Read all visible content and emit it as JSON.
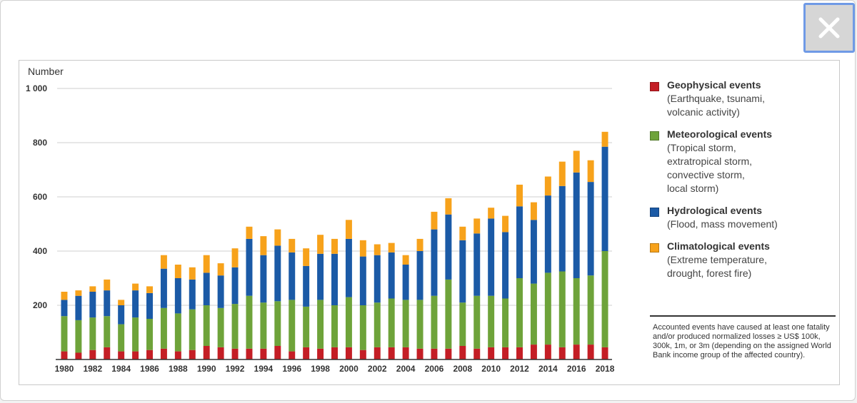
{
  "dialog": {
    "close_label": "Close"
  },
  "chart_data": {
    "type": "bar",
    "stacked": true,
    "ylabel": "Number",
    "ylim": [
      0,
      1000
    ],
    "yticks": [
      200,
      400,
      600,
      800,
      1000
    ],
    "ytick_labels": [
      "200",
      "400",
      "600",
      "800",
      "1 000"
    ],
    "categories": [
      "1980",
      "1981",
      "1982",
      "1983",
      "1984",
      "1985",
      "1986",
      "1987",
      "1988",
      "1989",
      "1990",
      "1991",
      "1992",
      "1993",
      "1994",
      "1995",
      "1996",
      "1997",
      "1998",
      "1999",
      "2000",
      "2001",
      "2002",
      "2003",
      "2004",
      "2005",
      "2006",
      "2007",
      "2008",
      "2009",
      "2010",
      "2011",
      "2012",
      "2013",
      "2014",
      "2015",
      "2016",
      "2017",
      "2018"
    ],
    "xtick_labels": [
      "1980",
      "",
      "1982",
      "",
      "1984",
      "",
      "1986",
      "",
      "1988",
      "",
      "1990",
      "",
      "1992",
      "",
      "1994",
      "",
      "1996",
      "",
      "1998",
      "",
      "2000",
      "",
      "2002",
      "",
      "2004",
      "",
      "2006",
      "",
      "2008",
      "",
      "2010",
      "",
      "2012",
      "",
      "2014",
      "",
      "2016",
      "",
      "2018"
    ],
    "series": [
      {
        "name": "Geophysical events",
        "color": "#c41e25",
        "values": [
          30,
          25,
          35,
          45,
          30,
          30,
          35,
          40,
          30,
          35,
          50,
          45,
          40,
          40,
          40,
          50,
          30,
          45,
          40,
          45,
          45,
          35,
          45,
          45,
          45,
          40,
          40,
          40,
          50,
          40,
          45,
          45,
          45,
          55,
          55,
          45,
          55,
          55,
          45
        ]
      },
      {
        "name": "Meteorological events",
        "color": "#6ea33a",
        "values": [
          130,
          120,
          120,
          115,
          100,
          125,
          115,
          150,
          140,
          150,
          150,
          145,
          165,
          195,
          170,
          165,
          190,
          150,
          180,
          155,
          185,
          165,
          165,
          180,
          175,
          180,
          195,
          255,
          160,
          195,
          190,
          180,
          255,
          225,
          265,
          280,
          245,
          255,
          355
        ]
      },
      {
        "name": "Hydrological events",
        "color": "#1b5aa6",
        "values": [
          60,
          90,
          95,
          95,
          70,
          100,
          95,
          145,
          130,
          110,
          120,
          120,
          135,
          210,
          175,
          205,
          175,
          150,
          170,
          190,
          215,
          180,
          175,
          170,
          130,
          180,
          245,
          240,
          230,
          230,
          285,
          245,
          265,
          235,
          285,
          315,
          390,
          345,
          385
        ]
      },
      {
        "name": "Climatological events",
        "color": "#f7a21b",
        "values": [
          30,
          20,
          20,
          40,
          20,
          25,
          25,
          50,
          50,
          45,
          65,
          45,
          70,
          45,
          70,
          60,
          50,
          65,
          70,
          55,
          70,
          60,
          40,
          35,
          35,
          45,
          65,
          60,
          50,
          55,
          40,
          60,
          80,
          65,
          70,
          90,
          80,
          80,
          55
        ]
      }
    ],
    "legend": [
      {
        "title": "Geophysical events",
        "desc": "(Earthquake, tsunami,\nvolcanic activity)"
      },
      {
        "title": "Meteorological events",
        "desc": "(Tropical storm,\nextratropical storm,\nconvective storm,\nlocal storm)"
      },
      {
        "title": "Hydrological events",
        "desc": "(Flood, mass movement)"
      },
      {
        "title": "Climatological events",
        "desc": "(Extreme temperature,\ndrought, forest fire)"
      }
    ],
    "note": "Accounted events have caused at least one fatality and/or produced normalized losses ≥ US$ 100k, 300k, 1m, or 3m (depending on the assigned World Bank income group of the affected country)."
  }
}
